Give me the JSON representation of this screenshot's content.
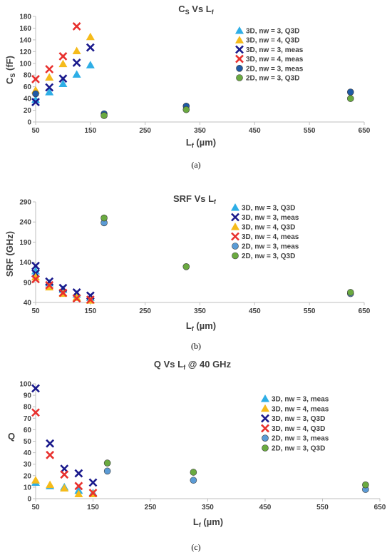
{
  "chart_data": [
    {
      "type": "scatter",
      "title": "C",
      "title_sub1": "S",
      "title_mid": " Vs L",
      "title_sub2": "f",
      "xlabel_main": "L",
      "xlabel_sub": "f",
      "xlabel_unit": " (µm)",
      "ylabel_main": "C",
      "ylabel_sub": "S",
      "ylabel_unit": " (fF)",
      "xlim": [
        50,
        650
      ],
      "ylim": [
        0,
        180
      ],
      "xticks": [
        "50",
        "150",
        "250",
        "350",
        "450",
        "550",
        "650"
      ],
      "yticks": [
        "0",
        "20",
        "40",
        "60",
        "80",
        "100",
        "120",
        "140",
        "160",
        "180"
      ],
      "grid": false,
      "legend_position": "top-right",
      "caption": "(a)",
      "series": [
        {
          "name": "3D, nw = 3, Q3D",
          "marker": "triangle",
          "color": "#2eaee6",
          "points": [
            [
              50,
              38
            ],
            [
              75,
              51
            ],
            [
              100,
              65
            ],
            [
              125,
              81
            ],
            [
              150,
              97
            ]
          ]
        },
        {
          "name": "3D, nw = 4, Q3D",
          "marker": "triangle",
          "color": "#f5bb1b",
          "points": [
            [
              50,
              54
            ],
            [
              75,
              76
            ],
            [
              100,
              99
            ],
            [
              125,
              121
            ],
            [
              150,
              145
            ]
          ]
        },
        {
          "name": "3D, nw = 3, meas",
          "marker": "x",
          "color": "#1a1a8c",
          "points": [
            [
              50,
              34
            ],
            [
              75,
              59
            ],
            [
              100,
              74
            ],
            [
              125,
              101
            ],
            [
              150,
              127
            ]
          ]
        },
        {
          "name": "3D, nw = 4, meas",
          "marker": "x",
          "color": "#e8302d",
          "points": [
            [
              50,
              73
            ],
            [
              75,
              90
            ],
            [
              100,
              112
            ],
            [
              125,
              163
            ]
          ]
        },
        {
          "name": "2D, nw = 3, meas",
          "marker": "circle",
          "color": "#1f5aa6",
          "points": [
            [
              50,
              48
            ],
            [
              175,
              14
            ],
            [
              325,
              27
            ],
            [
              625,
              51
            ]
          ]
        },
        {
          "name": "2D, nw = 3, Q3D",
          "marker": "circle",
          "color": "#6aaa40",
          "points": [
            [
              175,
              11
            ],
            [
              325,
              21
            ],
            [
              625,
              40
            ]
          ]
        }
      ]
    },
    {
      "type": "scatter",
      "title": "SRF Vs L",
      "title_sub2": "f",
      "xlabel_main": "L",
      "xlabel_sub": "f",
      "xlabel_unit": " (µm)",
      "ylabel_main": "SRF (GHz)",
      "xlim": [
        50,
        650
      ],
      "ylim": [
        40,
        290
      ],
      "xticks": [
        "50",
        "150",
        "250",
        "350",
        "450",
        "550",
        "650"
      ],
      "yticks": [
        "40",
        "90",
        "140",
        "190",
        "240",
        "290"
      ],
      "grid": false,
      "legend_position": "top-right",
      "caption": "(b)",
      "series": [
        {
          "name": "3D, nw = 3, Q3D",
          "marker": "triangle",
          "color": "#2eaee6",
          "points": [
            [
              50,
              118
            ],
            [
              75,
              88
            ],
            [
              100,
              72
            ],
            [
              125,
              60
            ],
            [
              150,
              52
            ]
          ]
        },
        {
          "name": "3D, nw = 3, meas",
          "marker": "x",
          "color": "#1a1a8c",
          "points": [
            [
              50,
              131
            ],
            [
              50,
              112
            ],
            [
              75,
              92
            ],
            [
              100,
              76
            ],
            [
              125,
              65
            ],
            [
              150,
              57
            ]
          ]
        },
        {
          "name": "3D, nw = 4, Q3D",
          "marker": "triangle",
          "color": "#f5bb1b",
          "points": [
            [
              50,
              103
            ],
            [
              75,
              78
            ],
            [
              100,
              62
            ],
            [
              125,
              52
            ],
            [
              150,
              45
            ]
          ]
        },
        {
          "name": "3D, nw = 4, meas",
          "marker": "x",
          "color": "#e8302d",
          "points": [
            [
              50,
              98
            ],
            [
              75,
              83
            ],
            [
              100,
              64
            ],
            [
              125,
              50
            ],
            [
              150,
              47
            ]
          ]
        },
        {
          "name": "2D, nw = 3, meas",
          "marker": "circle",
          "color": "#5b9bd5",
          "points": [
            [
              175,
              238
            ],
            [
              625,
              62
            ]
          ]
        },
        {
          "name": "2D, nw = 3, Q3D",
          "marker": "circle",
          "color": "#6aaa40",
          "points": [
            [
              175,
              250
            ],
            [
              325,
              129
            ],
            [
              625,
              65
            ]
          ]
        }
      ]
    },
    {
      "type": "scatter",
      "title": "Q Vs L",
      "title_sub2": "f",
      "title_tail": " @ 40 GHz",
      "xlabel_main": "L",
      "xlabel_sub": "f",
      "xlabel_unit": " (µm)",
      "ylabel_main": "Q",
      "xlim": [
        50,
        650
      ],
      "ylim": [
        0,
        100
      ],
      "xticks": [
        "50",
        "150",
        "250",
        "350",
        "450",
        "550",
        "650"
      ],
      "yticks": [
        "0",
        "10",
        "20",
        "30",
        "40",
        "50",
        "60",
        "70",
        "80",
        "90",
        "100"
      ],
      "grid": false,
      "legend_position": "right",
      "caption": "(c)",
      "series": [
        {
          "name": "3D, nw = 3, meas",
          "marker": "triangle",
          "color": "#2eaee6",
          "points": [
            [
              50,
              14
            ],
            [
              75,
              11
            ],
            [
              100,
              10
            ],
            [
              125,
              7
            ],
            [
              150,
              5
            ]
          ]
        },
        {
          "name": "3D, nw = 4, meas",
          "marker": "triangle",
          "color": "#f5bb1b",
          "points": [
            [
              50,
              16
            ],
            [
              75,
              12
            ],
            [
              100,
              9
            ],
            [
              125,
              4
            ],
            [
              150,
              4
            ]
          ]
        },
        {
          "name": "3D, nw = 3, Q3D",
          "marker": "x",
          "color": "#1a1a8c",
          "points": [
            [
              50,
              96
            ],
            [
              75,
              48
            ],
            [
              100,
              26
            ],
            [
              125,
              22
            ],
            [
              150,
              14
            ]
          ]
        },
        {
          "name": "3D, nw = 4, Q3D",
          "marker": "x",
          "color": "#e8302d",
          "points": [
            [
              50,
              75
            ],
            [
              75,
              38
            ],
            [
              100,
              21
            ],
            [
              125,
              11
            ],
            [
              150,
              5
            ]
          ]
        },
        {
          "name": "2D, nw = 3, meas",
          "marker": "circle",
          "color": "#5b9bd5",
          "points": [
            [
              175,
              24
            ],
            [
              325,
              16
            ],
            [
              625,
              8
            ]
          ]
        },
        {
          "name": "2D, nw = 3, Q3D",
          "marker": "circle",
          "color": "#6aaa40",
          "points": [
            [
              175,
              31
            ],
            [
              325,
              23
            ],
            [
              625,
              12
            ]
          ]
        }
      ]
    }
  ]
}
